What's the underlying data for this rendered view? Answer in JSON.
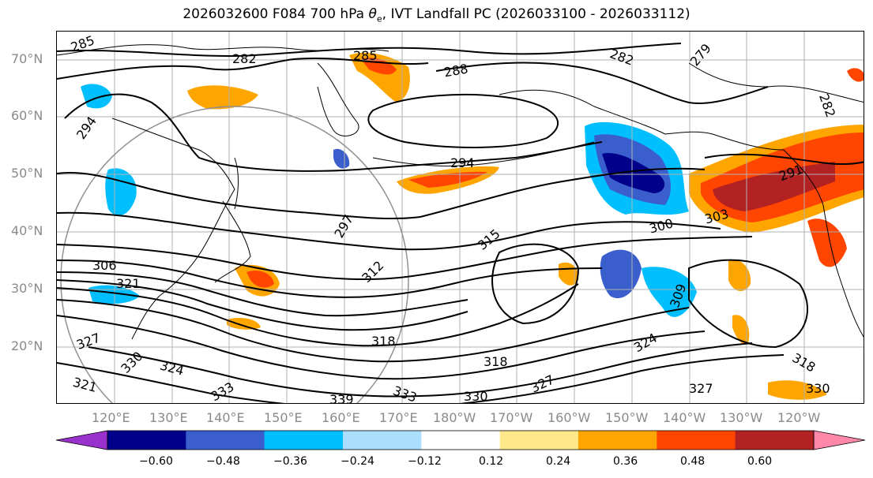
{
  "figure": {
    "title_prefix": "2026032600 F084 700 hPa ",
    "title_symbol": "θ",
    "title_symbol_sub": "e",
    "title_suffix": ", IVT Landfall PC (2026033100 - 2026033112)"
  },
  "map": {
    "lat_labels": [
      "70°N",
      "60°N",
      "50°N",
      "40°N",
      "30°N",
      "20°N"
    ],
    "lon_labels": [
      "120°E",
      "130°E",
      "140°E",
      "150°E",
      "160°E",
      "170°E",
      "180°W",
      "170°W",
      "160°W",
      "150°W",
      "140°W",
      "130°W",
      "120°W"
    ],
    "contour_labels": [
      "285",
      "282",
      "285",
      "288",
      "282",
      "279",
      "282",
      "294",
      "294",
      "297",
      "291",
      "306",
      "303",
      "300",
      "315",
      "312",
      "309",
      "321",
      "318",
      "318",
      "324",
      "321",
      "324",
      "327",
      "330",
      "333",
      "339",
      "333",
      "330",
      "327",
      "318",
      "330",
      "327"
    ],
    "colors": {
      "contour": "#000000",
      "coastline": "#000000",
      "grid": "#b0b0b0",
      "circle": "#909090"
    }
  },
  "colorbar": {
    "tick_labels": [
      "−0.60",
      "−0.48",
      "−0.36",
      "−0.24",
      "−0.12",
      "0.12",
      "0.24",
      "0.36",
      "0.48",
      "0.60"
    ],
    "levels": [
      -0.6,
      -0.48,
      -0.36,
      -0.24,
      -0.12,
      0.12,
      0.24,
      0.36,
      0.48,
      0.6
    ],
    "colors": [
      "#9932cc",
      "#00008b",
      "#3a5fcd",
      "#00bfff",
      "#aadfff",
      "#ffffff",
      "#ffe88a",
      "#ffa500",
      "#ff4500",
      "#b22222",
      "#ff88aa"
    ]
  }
}
